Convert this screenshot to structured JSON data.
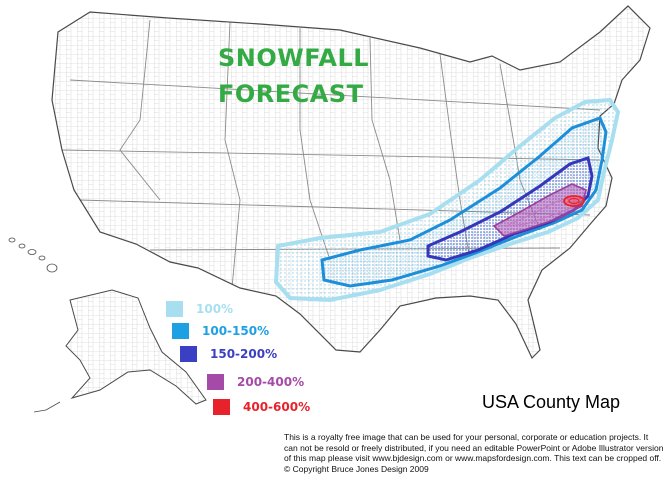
{
  "title": {
    "line1": "SNOWFALL",
    "line2": "FORECAST"
  },
  "legend": [
    {
      "label": "100%",
      "color": "#a8dff0"
    },
    {
      "label": "100-150%",
      "color": "#1da1e2"
    },
    {
      "label": "150-200%",
      "color": "#3b3fc4"
    },
    {
      "label": "200-400%",
      "color": "#a64aa8"
    },
    {
      "label": "400-600%",
      "color": "#e8222a"
    }
  ],
  "map_caption": "USA County Map",
  "copyright": "This is a royalty free image that can be used for your personal, corporate or education projects. It can not be resold or freely distributed, if you need an editable PowerPoint or Adobe Illustrator version of this map please visit www.bjdesign.com or www.mapsfordesign.com.  This text can be cropped off.  © Copyright Bruce Jones Design 2009",
  "colors": {
    "border": "#4a4a4a",
    "land": "#ffffff",
    "county_lines": "#bdbdbd"
  }
}
